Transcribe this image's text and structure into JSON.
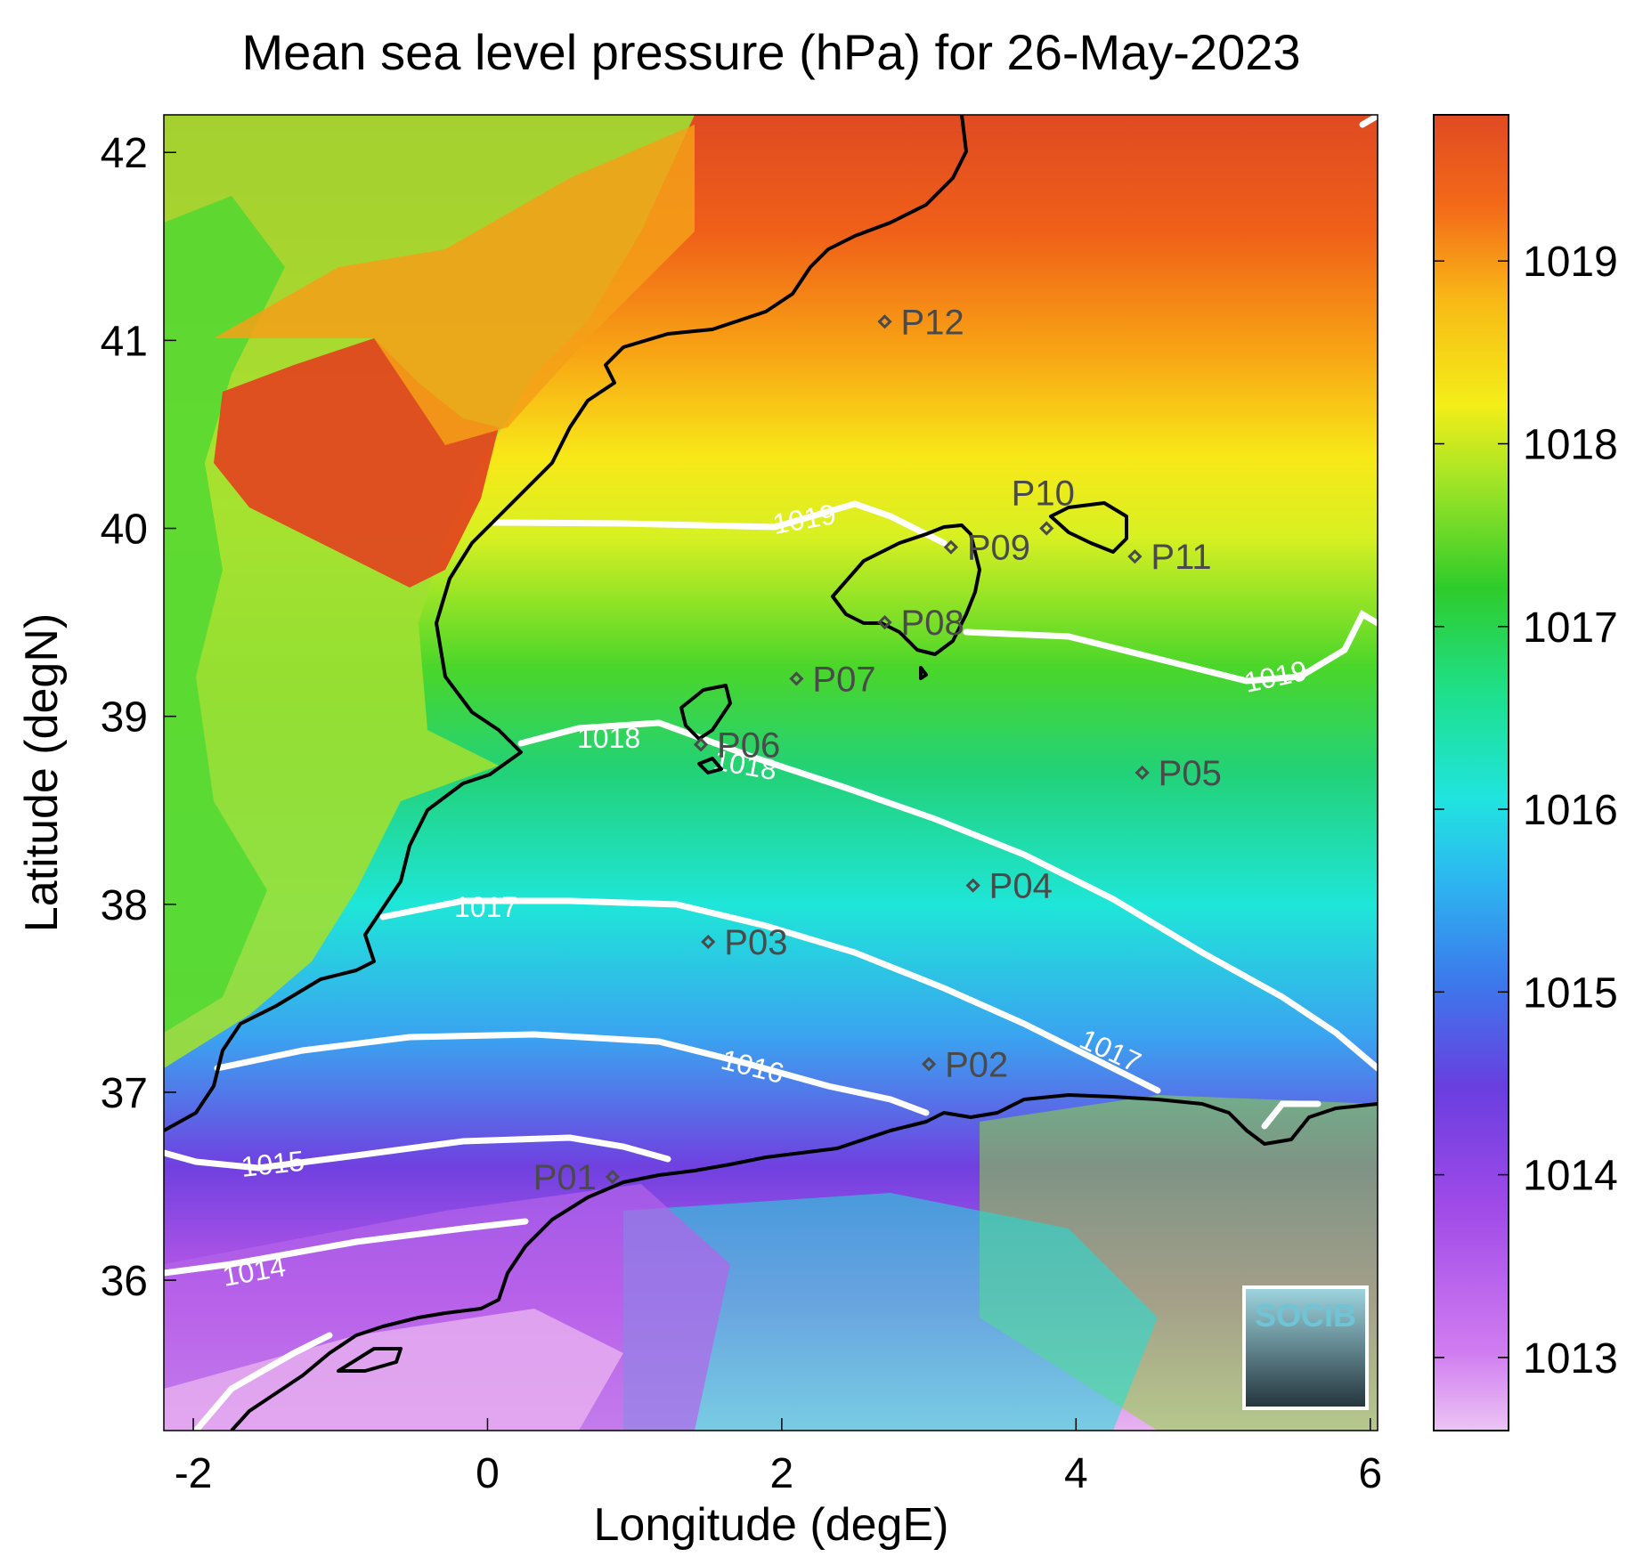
{
  "title": "Mean sea level pressure (hPa) for 26-May-2023",
  "xlabel": "Longitude (degE)",
  "ylabel": "Latitude (degN)",
  "x_ticks": [
    "-2",
    "0",
    "2",
    "4",
    "6"
  ],
  "y_ticks": [
    "42",
    "41",
    "40",
    "39",
    "38",
    "37",
    "36"
  ],
  "colorbar_ticks": [
    "1019",
    "1018",
    "1017",
    "1016",
    "1015",
    "1014",
    "1013"
  ],
  "logo_text": "SOCIB",
  "colors": {
    "coast": "#000000",
    "contour": "#ffffff",
    "station": "#4a4a4a"
  },
  "chart_data": {
    "type": "heatmap",
    "title": "Mean sea level pressure (hPa) for 26-May-2023",
    "xlabel": "Longitude (degE)",
    "ylabel": "Latitude (degN)",
    "xlim": [
      -2.2,
      6.05
    ],
    "ylim": [
      35.2,
      42.2
    ],
    "colorbar_range": [
      1012.6,
      1019.8
    ],
    "colorbar_ticks": [
      1013,
      1014,
      1015,
      1016,
      1017,
      1018,
      1019
    ],
    "contour_labels": [
      "1019",
      "1019",
      "1018",
      "1018",
      "1017",
      "1017",
      "1016",
      "1015",
      "1014"
    ],
    "contour_levels": [
      1014,
      1015,
      1016,
      1017,
      1018,
      1019
    ],
    "stations": [
      {
        "name": "P01",
        "lon": 0.85,
        "lat": 36.55
      },
      {
        "name": "P02",
        "lon": 3.0,
        "lat": 37.15
      },
      {
        "name": "P03",
        "lon": 1.5,
        "lat": 37.8
      },
      {
        "name": "P04",
        "lon": 3.3,
        "lat": 38.1
      },
      {
        "name": "P05",
        "lon": 4.45,
        "lat": 38.7
      },
      {
        "name": "P06",
        "lon": 1.45,
        "lat": 38.85
      },
      {
        "name": "P07",
        "lon": 2.1,
        "lat": 39.2
      },
      {
        "name": "P08",
        "lon": 2.7,
        "lat": 39.5
      },
      {
        "name": "P09",
        "lon": 3.15,
        "lat": 39.9
      },
      {
        "name": "P10",
        "lon": 3.8,
        "lat": 40.0
      },
      {
        "name": "P11",
        "lon": 4.4,
        "lat": 39.85
      },
      {
        "name": "P12",
        "lon": 2.7,
        "lat": 41.1
      }
    ]
  }
}
